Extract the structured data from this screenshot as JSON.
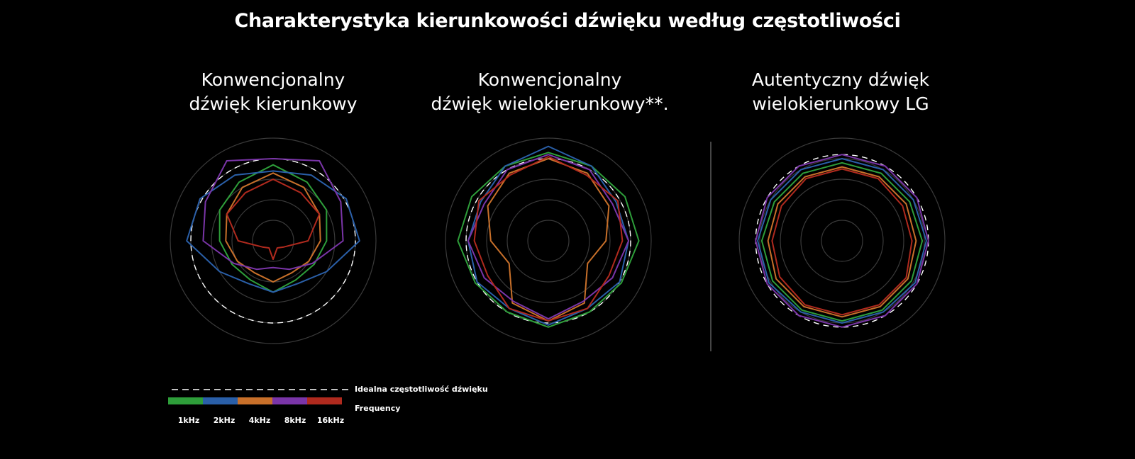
{
  "header": {
    "title": "Charakterystyka kierunkowości dźwięku według częstotliwości"
  },
  "legend": {
    "ideal_label": "Idealna częstotliwość dźwięku",
    "frequency_label": "Frequency",
    "items": [
      {
        "label": "1kHz",
        "color": "#2e9e3a"
      },
      {
        "label": "2kHz",
        "color": "#2a5fa8"
      },
      {
        "label": "4kHz",
        "color": "#c8702a"
      },
      {
        "label": "8kHz",
        "color": "#7a35a8"
      },
      {
        "label": "16kHz",
        "color": "#b02a1e"
      }
    ]
  },
  "chart_data": [
    {
      "type": "polar-line",
      "title_lines": [
        "Konwencjonalny",
        "dźwięk kierunkowy"
      ],
      "rlim": [
        0,
        5
      ],
      "ideal_radius": 4,
      "grid_rings": [
        1,
        2,
        3,
        4,
        5
      ],
      "angles_deg": [
        0,
        30,
        60,
        90,
        120,
        150,
        180,
        210,
        240,
        270,
        300,
        330
      ],
      "series": [
        {
          "name": "1kHz",
          "color": "#2e9e3a",
          "r": [
            3.7,
            3.3,
            3.0,
            2.6,
            2.3,
            2.2,
            2.5,
            2.2,
            2.3,
            2.6,
            3.0,
            3.3
          ]
        },
        {
          "name": "2kHz",
          "color": "#2a5fa8",
          "r": [
            3.4,
            3.7,
            4.1,
            4.2,
            3.0,
            2.4,
            2.5,
            2.4,
            3.0,
            4.2,
            4.1,
            3.7
          ]
        },
        {
          "name": "4kHz",
          "color": "#c8702a",
          "r": [
            3.3,
            3.0,
            2.6,
            2.3,
            2.0,
            1.8,
            2.0,
            1.8,
            2.0,
            2.3,
            2.6,
            3.0
          ]
        },
        {
          "name": "8kHz",
          "color": "#7a35a8",
          "r": [
            4.0,
            4.5,
            3.8,
            3.4,
            2.2,
            1.6,
            1.3,
            1.6,
            2.2,
            3.4,
            3.8,
            4.5
          ]
        },
        {
          "name": "16kHz",
          "color": "#b02a1e",
          "r": [
            3.0,
            2.7,
            2.6,
            1.7,
            0.6,
            0.4,
            0.9,
            0.4,
            0.6,
            1.7,
            2.6,
            2.7
          ]
        }
      ]
    },
    {
      "type": "polar-line",
      "title_lines": [
        "Konwencjonalny",
        "dźwięk wielokierunkowy**."
      ],
      "rlim": [
        0,
        5
      ],
      "ideal_radius": 4,
      "grid_rings": [
        1,
        2,
        3,
        4,
        5
      ],
      "angles_deg": [
        0,
        30,
        60,
        90,
        120,
        150,
        180,
        210,
        240,
        270,
        300,
        330
      ],
      "series": [
        {
          "name": "1kHz",
          "color": "#2e9e3a",
          "r": [
            4.3,
            4.2,
            4.3,
            4.4,
            4.1,
            4.0,
            4.2,
            4.0,
            4.1,
            4.4,
            4.3,
            4.2
          ]
        },
        {
          "name": "2kHz",
          "color": "#2a5fa8",
          "r": [
            4.6,
            4.2,
            3.8,
            3.9,
            4.0,
            3.8,
            4.1,
            3.8,
            4.0,
            3.9,
            3.8,
            4.2
          ]
        },
        {
          "name": "4kHz",
          "color": "#c8702a",
          "r": [
            4.0,
            3.8,
            3.4,
            2.8,
            2.2,
            3.5,
            3.9,
            3.5,
            2.2,
            2.8,
            3.4,
            3.8
          ]
        },
        {
          "name": "8kHz",
          "color": "#7a35a8",
          "r": [
            4.2,
            4.0,
            3.6,
            3.9,
            3.6,
            3.4,
            3.8,
            3.4,
            3.6,
            3.9,
            3.6,
            4.0
          ]
        },
        {
          "name": "16kHz",
          "color": "#b02a1e",
          "r": [
            4.1,
            3.7,
            3.9,
            3.6,
            3.4,
            3.8,
            3.9,
            3.8,
            3.4,
            3.6,
            3.9,
            3.7
          ]
        }
      ]
    },
    {
      "type": "polar-line",
      "title_lines": [
        "Autentyczny dźwięk",
        "wielokierunkowy LG"
      ],
      "rlim": [
        0,
        5
      ],
      "ideal_radius": 4.2,
      "grid_rings": [
        1,
        2,
        3,
        4,
        5
      ],
      "angles_deg": [
        0,
        30,
        60,
        90,
        120,
        150,
        180,
        210,
        240,
        270,
        300,
        330
      ],
      "series": [
        {
          "name": "1kHz",
          "color": "#2e9e3a",
          "r": [
            3.8,
            3.8,
            3.8,
            3.9,
            3.9,
            3.9,
            3.9,
            3.9,
            3.9,
            3.9,
            3.8,
            3.8
          ]
        },
        {
          "name": "2kHz",
          "color": "#2a5fa8",
          "r": [
            4.0,
            4.0,
            4.0,
            4.1,
            4.1,
            4.0,
            4.0,
            4.0,
            4.1,
            4.1,
            4.0,
            4.0
          ]
        },
        {
          "name": "4kHz",
          "color": "#c8702a",
          "r": [
            3.6,
            3.6,
            3.6,
            3.6,
            3.7,
            3.7,
            3.7,
            3.7,
            3.7,
            3.6,
            3.6,
            3.6
          ]
        },
        {
          "name": "8kHz",
          "color": "#7a35a8",
          "r": [
            4.2,
            4.2,
            4.2,
            4.2,
            4.2,
            4.2,
            4.2,
            4.2,
            4.2,
            4.2,
            4.2,
            4.2
          ]
        },
        {
          "name": "16kHz",
          "color": "#b02a1e",
          "r": [
            3.5,
            3.5,
            3.4,
            3.4,
            3.6,
            3.6,
            3.6,
            3.6,
            3.5,
            3.4,
            3.4,
            3.5
          ]
        }
      ]
    }
  ]
}
